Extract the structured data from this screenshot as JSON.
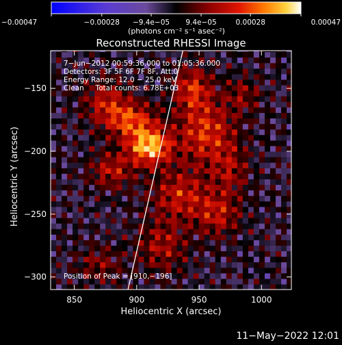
{
  "chart_data": {
    "type": "heatmap",
    "title": "Reconstructed RHESSI Image",
    "xlabel": "Heliocentric X (arcsec)",
    "ylabel": "Heliocentric Y (arcsec)",
    "xlim": [
      831,
      1024
    ],
    "ylim": [
      -310,
      -120
    ],
    "x_ticks": [
      850,
      900,
      950,
      1000
    ],
    "x_tick_labels": [
      "850",
      "900",
      "950",
      "1000"
    ],
    "y_ticks": [
      -150,
      -200,
      -250,
      -300
    ],
    "y_tick_labels": [
      "−150",
      "−200",
      "−250",
      "−300"
    ],
    "colorbar": {
      "range": [
        -0.00047,
        0.00047
      ],
      "ticks": [
        -0.00047,
        -0.00028,
        -9.4e-05,
        9.4e-05,
        0.00028,
        0.00047
      ],
      "tick_labels": [
        "−0.00047",
        "−0.00028",
        "−9.4e−05",
        "9.4e−05",
        "0.00028",
        "0.00047"
      ],
      "unit_label": "(photons cm⁻² s⁻¹ asec⁻²)"
    },
    "annotations": [
      "7−Jun−2012 00:59:36.000 to 01:05:36.000",
      "Detectors: 3F 5F 6F 7F 8F, Att:0",
      "Energy Range: 12.0 − 25.0 keV",
      "Clean     Total counts: 6.78E+03"
    ],
    "peak_label": "Position of Peak = [910,−196]",
    "peak": [
      910,
      -196
    ],
    "limb_line": [
      [
        893,
        -310
      ],
      [
        937,
        -120
      ]
    ],
    "blobs": [
      {
        "x": 910,
        "y": -196,
        "amp": 1.0,
        "sx": 12,
        "sy": 10
      },
      {
        "x": 895,
        "y": -175,
        "amp": 0.65,
        "sx": 14,
        "sy": 10
      },
      {
        "x": 875,
        "y": -160,
        "amp": 0.45,
        "sx": 12,
        "sy": 12
      },
      {
        "x": 955,
        "y": -185,
        "amp": 0.6,
        "sx": 16,
        "sy": 18
      },
      {
        "x": 945,
        "y": -150,
        "amp": 0.55,
        "sx": 10,
        "sy": 12
      },
      {
        "x": 935,
        "y": -235,
        "amp": 0.5,
        "sx": 16,
        "sy": 14
      },
      {
        "x": 965,
        "y": -250,
        "amp": 0.45,
        "sx": 12,
        "sy": 12
      },
      {
        "x": 880,
        "y": -215,
        "amp": 0.45,
        "sx": 12,
        "sy": 10
      },
      {
        "x": 920,
        "y": -275,
        "amp": 0.4,
        "sx": 14,
        "sy": 14
      },
      {
        "x": 975,
        "y": -215,
        "amp": 0.35,
        "sx": 10,
        "sy": 14
      },
      {
        "x": 985,
        "y": -155,
        "amp": 0.3,
        "sx": 10,
        "sy": 10
      },
      {
        "x": 870,
        "y": -290,
        "amp": 0.3,
        "sx": 12,
        "sy": 10
      }
    ]
  },
  "footer_datetime": "11−May−2022 12:01"
}
